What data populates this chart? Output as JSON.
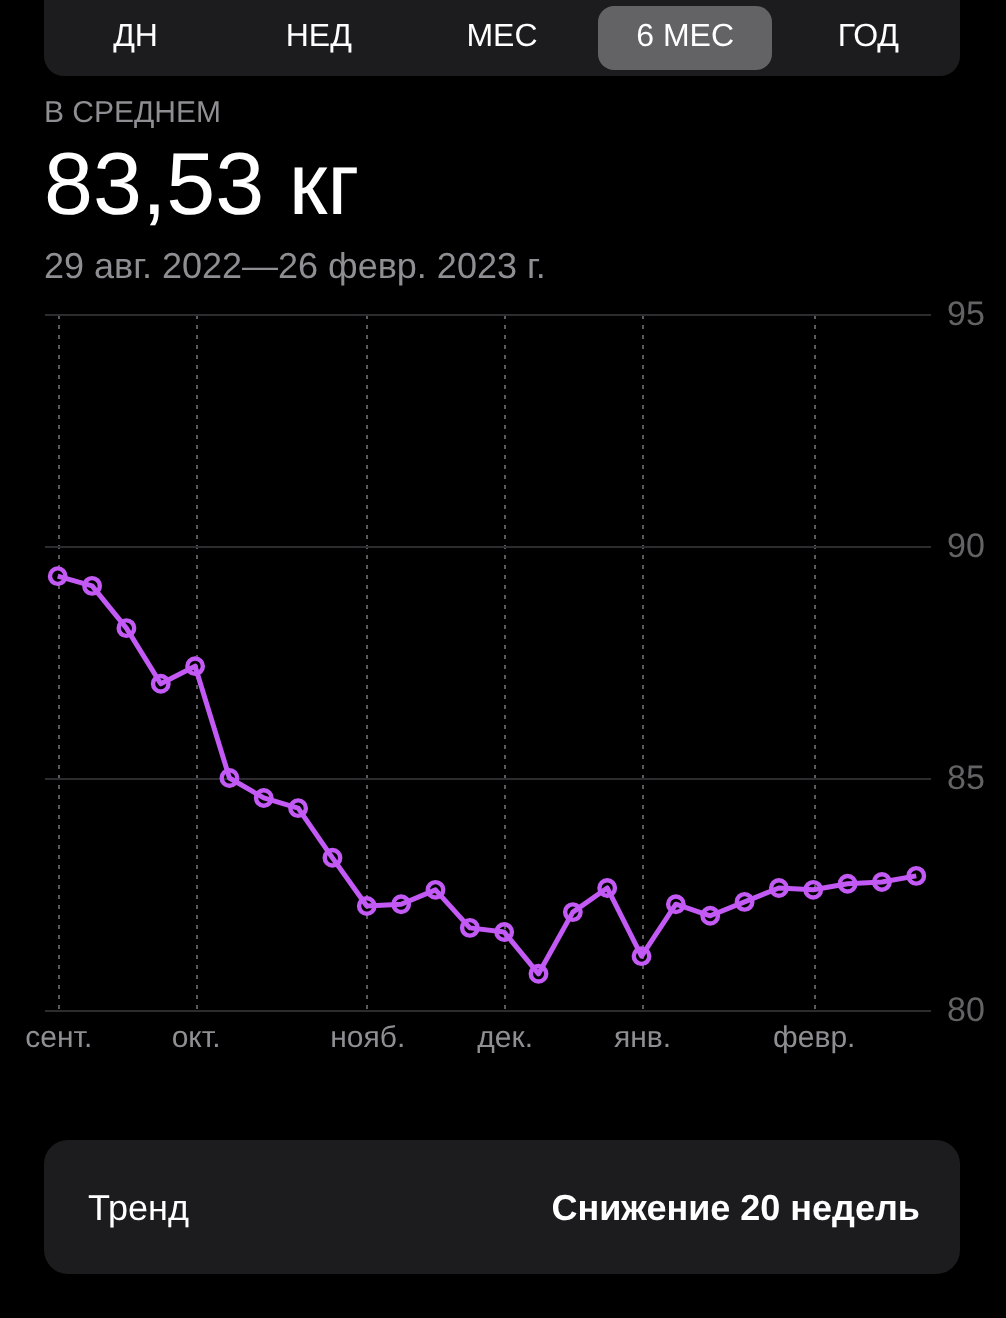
{
  "chart_data": {
    "type": "line",
    "title": "83,53 кг",
    "subtitle": "29 авг. 2022—26 февр. 2023 г.",
    "annotations": [
      "ДН",
      "НЕД",
      "МЕС",
      "6 МЕС",
      "ГОД",
      "В СРЕДНЕМ",
      "Тренд",
      "Снижение 20 недель"
    ],
    "categories": [
      "сент.",
      null,
      null,
      null,
      "окт.",
      null,
      null,
      null,
      null,
      "нояб.",
      null,
      null,
      null,
      "дек.",
      null,
      null,
      null,
      "янв.",
      null,
      null,
      null,
      null,
      "февр.",
      null,
      null,
      null
    ],
    "series": [
      {
        "color": "#c35af5",
        "values": [
          89.35,
          89.14,
          88.23,
          87.03,
          87.41,
          85.0,
          84.57,
          84.35,
          83.28,
          82.24,
          82.28,
          82.59,
          81.77,
          81.68,
          80.78,
          82.11,
          82.63,
          81.16,
          82.28,
          82.03,
          82.33,
          82.63,
          82.59,
          82.72,
          82.76,
          82.89
        ]
      }
    ],
    "ylim": [
      80,
      95
    ],
    "yticks": [
      80,
      85,
      90,
      95
    ],
    "grid": true,
    "marker": "circle",
    "line_style": "solid"
  }
}
